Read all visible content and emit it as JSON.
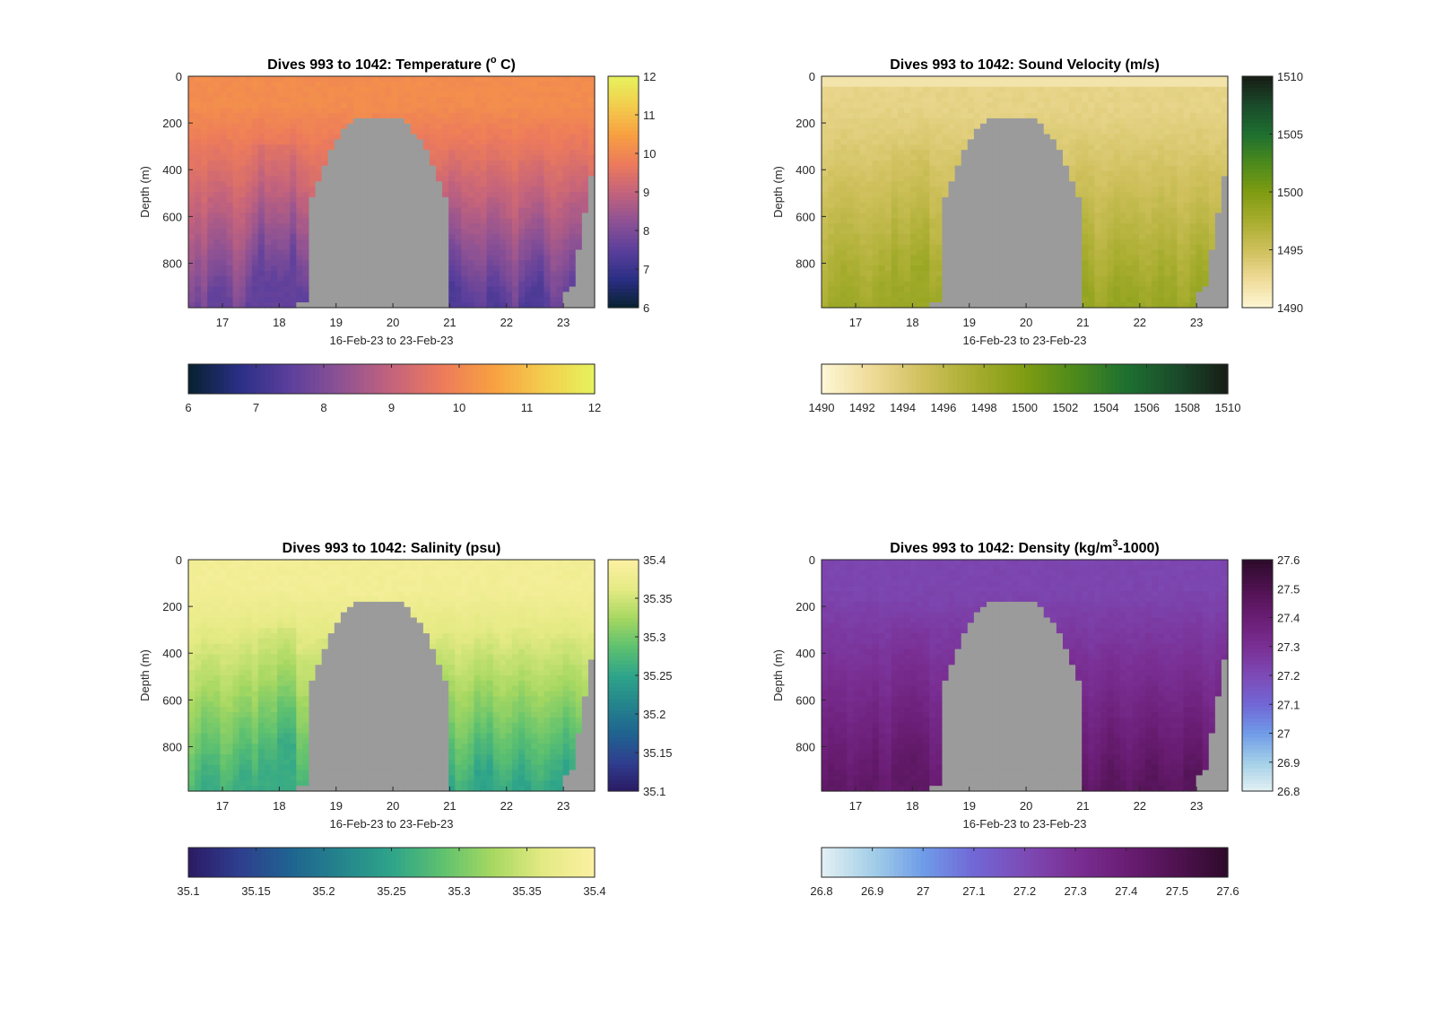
{
  "chart_data": [
    {
      "type": "heatmap",
      "title": "Dives 993 to 1042: Temperature (",
      "title_superscript": "o",
      "title_suffix": " C)",
      "xlabel": "16-Feb-23 to 23-Feb-23",
      "ylabel": "Depth (m)",
      "x_ticks": [
        "17",
        "18",
        "19",
        "20",
        "21",
        "22",
        "23"
      ],
      "y_ticks": [
        "0",
        "200",
        "400",
        "600",
        "800"
      ],
      "ylim": [
        0,
        990
      ],
      "xlim": [
        16.4,
        23.55
      ],
      "colorbar_ticks": [
        "6",
        "7",
        "8",
        "9",
        "10",
        "11",
        "12"
      ],
      "horizontal_colorbar_ticks": [
        "6",
        "7",
        "8",
        "9",
        "10",
        "11",
        "12"
      ],
      "colorbar_range": [
        6,
        12
      ],
      "colormap": [
        "#07212f",
        "#2a2f85",
        "#5b3f9c",
        "#8e5294",
        "#c4637c",
        "#ed7b5b",
        "#f8a041",
        "#f3cd4d",
        "#e6f35d"
      ],
      "surface_value": 10.1,
      "deep_value_east": 7.3,
      "deep_value_west": 7.6,
      "no_data_color": "#9b9b9b"
    },
    {
      "type": "heatmap",
      "title": "Dives 993 to 1042: Sound Velocity (m/s)",
      "title_superscript": "",
      "title_suffix": "",
      "xlabel": "16-Feb-23 to 23-Feb-23",
      "ylabel": "Depth (m)",
      "x_ticks": [
        "17",
        "18",
        "19",
        "20",
        "21",
        "22",
        "23"
      ],
      "y_ticks": [
        "0",
        "200",
        "400",
        "600",
        "800"
      ],
      "ylim": [
        0,
        990
      ],
      "xlim": [
        16.4,
        23.55
      ],
      "colorbar_ticks": [
        "1490",
        "1495",
        "1500",
        "1505",
        "1510"
      ],
      "horizontal_colorbar_ticks": [
        "1490",
        "1492",
        "1494",
        "1496",
        "1498",
        "1500",
        "1502",
        "1504",
        "1506",
        "1508",
        "1510"
      ],
      "colorbar_range": [
        1490,
        1510
      ],
      "colormap": [
        "#fdf7d5",
        "#efdb98",
        "#cfc05c",
        "#a8ad2f",
        "#7f9c12",
        "#4c8a1c",
        "#1e7030",
        "#1a4b2b",
        "#171c15"
      ],
      "surface_value": 1493.2,
      "deep_value_east": 1498.6,
      "deep_value_west": 1498.2,
      "no_data_color": "#9b9b9b"
    },
    {
      "type": "heatmap",
      "title": "Dives 993 to 1042: Salinity (psu)",
      "title_superscript": "",
      "title_suffix": "",
      "xlabel": "16-Feb-23 to 23-Feb-23",
      "ylabel": "Depth (m)",
      "x_ticks": [
        "17",
        "18",
        "19",
        "20",
        "21",
        "22",
        "23"
      ],
      "y_ticks": [
        "0",
        "200",
        "400",
        "600",
        "800"
      ],
      "ylim": [
        0,
        990
      ],
      "xlim": [
        16.4,
        23.55
      ],
      "colorbar_ticks": [
        "35.1",
        "35.15",
        "35.2",
        "35.25",
        "35.3",
        "35.35",
        "35.4"
      ],
      "horizontal_colorbar_ticks": [
        "35.1",
        "35.15",
        "35.2",
        "35.25",
        "35.3",
        "35.35",
        "35.4"
      ],
      "colorbar_range": [
        35.1,
        35.4
      ],
      "colormap": [
        "#2b1a63",
        "#2f3e8f",
        "#1f6390",
        "#24848c",
        "#2ea48a",
        "#5ec16f",
        "#a7d861",
        "#e5ea84",
        "#fbf0a2"
      ],
      "surface_value": 35.385,
      "deep_value_east": 35.25,
      "deep_value_west": 35.26,
      "no_data_color": "#9b9b9b"
    },
    {
      "type": "heatmap",
      "title": "Dives 993 to 1042: Density (kg/m",
      "title_superscript": "3",
      "title_suffix": "-1000)",
      "xlabel": "16-Feb-23 to 23-Feb-23",
      "ylabel": "Depth (m)",
      "x_ticks": [
        "17",
        "18",
        "19",
        "20",
        "21",
        "22",
        "23"
      ],
      "y_ticks": [
        "0",
        "200",
        "400",
        "600",
        "800"
      ],
      "ylim": [
        0,
        990
      ],
      "xlim": [
        16.4,
        23.55
      ],
      "colorbar_ticks": [
        "26.8",
        "26.9",
        "27",
        "27.1",
        "27.2",
        "27.3",
        "27.4",
        "27.5",
        "27.6"
      ],
      "horizontal_colorbar_ticks": [
        "26.8",
        "26.9",
        "27",
        "27.1",
        "27.2",
        "27.3",
        "27.4",
        "27.5",
        "27.6"
      ],
      "colorbar_range": [
        26.8,
        27.6
      ],
      "colormap": [
        "#e3f1f3",
        "#a4cfe8",
        "#6f9ce8",
        "#7167d6",
        "#7d4bb6",
        "#7a2f94",
        "#6a1d74",
        "#4f1250",
        "#2d0a2a"
      ],
      "surface_value": 27.22,
      "deep_value_east": 27.47,
      "deep_value_west": 27.44,
      "no_data_color": "#9b9b9b"
    }
  ]
}
